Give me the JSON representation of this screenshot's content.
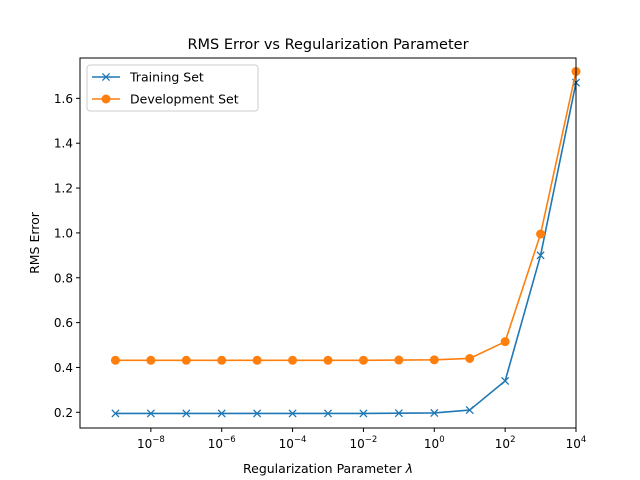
{
  "chart_data": {
    "type": "line",
    "title": "RMS Error vs Regularization Parameter",
    "xlabel": "Regularization Parameter ",
    "xlabel_symbol": "λ",
    "ylabel": "RMS Error",
    "xscale": "log",
    "xlim": [
      1e-10,
      10000.0
    ],
    "ylim": [
      0.13,
      1.78
    ],
    "xticks": [
      {
        "value": 1e-08,
        "base": "10",
        "exp": "−8"
      },
      {
        "value": 1e-06,
        "base": "10",
        "exp": "−6"
      },
      {
        "value": 0.0001,
        "base": "10",
        "exp": "−4"
      },
      {
        "value": 0.01,
        "base": "10",
        "exp": "−2"
      },
      {
        "value": 1,
        "base": "10",
        "exp": "0"
      },
      {
        "value": 100,
        "base": "10",
        "exp": "2"
      },
      {
        "value": 10000,
        "base": "10",
        "exp": "4"
      }
    ],
    "yticks": [
      {
        "value": 0.2,
        "label": "0.2"
      },
      {
        "value": 0.4,
        "label": "0.4"
      },
      {
        "value": 0.6,
        "label": "0.6"
      },
      {
        "value": 0.8,
        "label": "0.8"
      },
      {
        "value": 1.0,
        "label": "1.0"
      },
      {
        "value": 1.2,
        "label": "1.2"
      },
      {
        "value": 1.4,
        "label": "1.4"
      },
      {
        "value": 1.6,
        "label": "1.6"
      }
    ],
    "x": [
      1e-09,
      1e-08,
      1e-07,
      1e-06,
      1e-05,
      0.0001,
      0.001,
      0.01,
      0.1,
      1,
      10,
      100,
      1000,
      10000
    ],
    "series": [
      {
        "name": "Training Set",
        "color": "#1f77b4",
        "marker": "x",
        "values": [
          0.195,
          0.195,
          0.195,
          0.195,
          0.195,
          0.195,
          0.195,
          0.195,
          0.196,
          0.197,
          0.21,
          0.34,
          0.9,
          1.67
        ]
      },
      {
        "name": "Development Set",
        "color": "#ff7f0e",
        "marker": "o",
        "values": [
          0.432,
          0.432,
          0.432,
          0.432,
          0.432,
          0.432,
          0.432,
          0.432,
          0.433,
          0.434,
          0.44,
          0.515,
          0.995,
          1.72
        ]
      }
    ],
    "legend_position": "top-left",
    "grid": false
  }
}
